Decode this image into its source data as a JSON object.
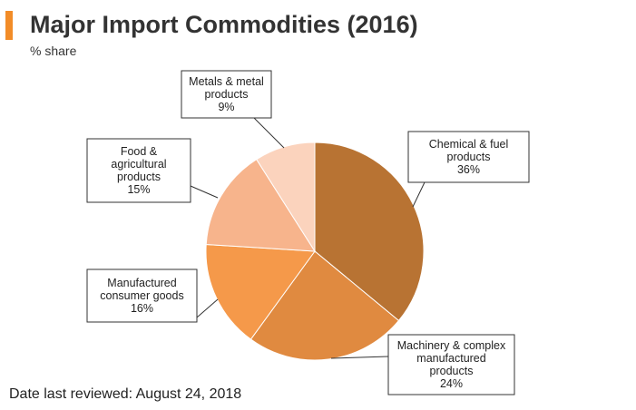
{
  "header": {
    "title": "Major Import Commodities (2016)",
    "subtitle": "% share",
    "accent_color": "#f28c28"
  },
  "footer": {
    "text": "Date last reviewed: August 24, 2018"
  },
  "chart_data": {
    "type": "pie",
    "title": "Major Import Commodities (2016)",
    "subtitle": "% share",
    "unit": "%",
    "slices": [
      {
        "label": "Chemical & fuel products",
        "value": 36,
        "color": "#b87333",
        "label_lines": [
          "Chemical & fuel",
          "products",
          "36%"
        ]
      },
      {
        "label": "Machinery & complex manufactured products",
        "value": 24,
        "color": "#e08a40",
        "label_lines": [
          "Machinery & complex",
          "manufactured",
          "products",
          "24%"
        ]
      },
      {
        "label": "Manufactured consumer goods",
        "value": 16,
        "color": "#f5994a",
        "label_lines": [
          "Manufactured",
          "consumer goods",
          "16%"
        ]
      },
      {
        "label": "Food & agricultural products",
        "value": 15,
        "color": "#f7b48c",
        "label_lines": [
          "Food &",
          "agricultural",
          "products",
          "15%"
        ]
      },
      {
        "label": "Metals & metal products",
        "value": 9,
        "color": "#fbd3bd",
        "label_lines": [
          "Metals & metal",
          "products",
          "9%"
        ]
      }
    ]
  }
}
